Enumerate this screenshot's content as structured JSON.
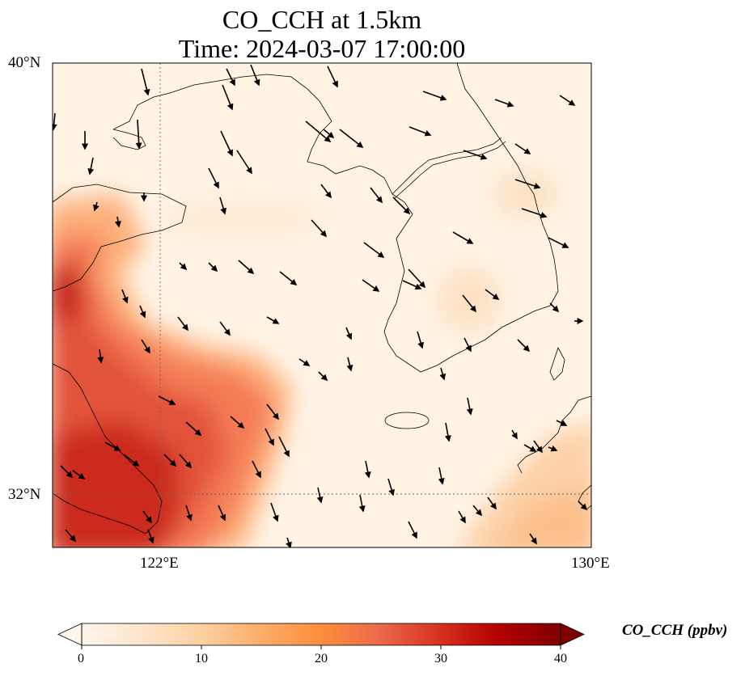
{
  "title_line1": "CO_CCH at 1.5km",
  "title_line2": "Time: 2024-03-07 17:00:00",
  "lat_ticks": [
    "40°N",
    "32°N"
  ],
  "lon_ticks": [
    "122°E",
    "130°E"
  ],
  "colorbar": {
    "label": "CO_CCH (ppbv)",
    "ticks": [
      "0",
      "10",
      "20",
      "30",
      "40"
    ],
    "colors": [
      "#fff5eb",
      "#fee6ce",
      "#fdd0a2",
      "#fdae6b",
      "#fd8d3c",
      "#f16913",
      "#d94801",
      "#a63603",
      "#7f2704"
    ]
  },
  "map_extent": {
    "lon": [
      120,
      130
    ],
    "lat": [
      31,
      40
    ]
  },
  "concentration_field_colors": {
    "low": "#fff5eb",
    "mid": "#fdae6b",
    "high": "#c8281b"
  },
  "wind_arrow_color": "#000000",
  "coastline_color": "#000000"
}
